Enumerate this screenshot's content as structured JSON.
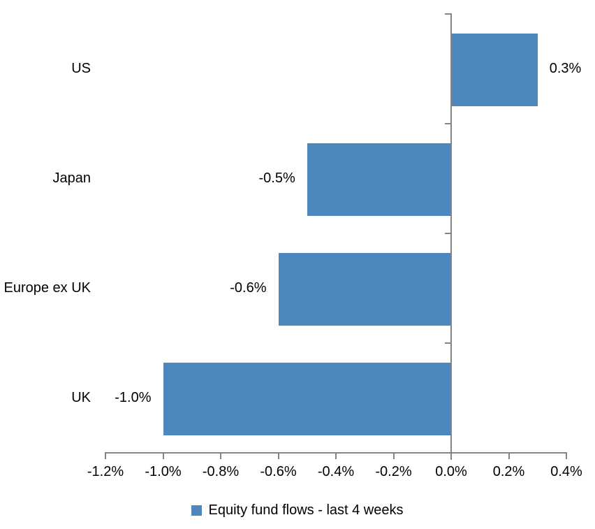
{
  "chart_data": {
    "type": "bar",
    "orientation": "horizontal",
    "title": "",
    "categories": [
      "US",
      "Japan",
      "Europe ex UK",
      "UK"
    ],
    "values": [
      0.3,
      -0.5,
      -0.6,
      -1.0
    ],
    "data_labels": [
      "0.3%",
      "-0.5%",
      "-0.6%",
      "-1.0%"
    ],
    "series_name": "Equity fund flows - last 4 weeks",
    "x_axis": {
      "min": -1.2,
      "max": 0.4,
      "tick_step": 0.2,
      "tick_labels": [
        "-1.2%",
        "-1.0%",
        "-0.8%",
        "-0.6%",
        "-0.4%",
        "-0.2%",
        "0.0%",
        "0.2%",
        "0.4%"
      ]
    },
    "grid": false,
    "legend_position": "bottom",
    "colors": {
      "bar": "#4d87be",
      "axis": "#848484",
      "text": "#000000",
      "background": "#ffffff"
    }
  },
  "legend": {
    "label": "Equity fund flows - last 4 weeks"
  }
}
